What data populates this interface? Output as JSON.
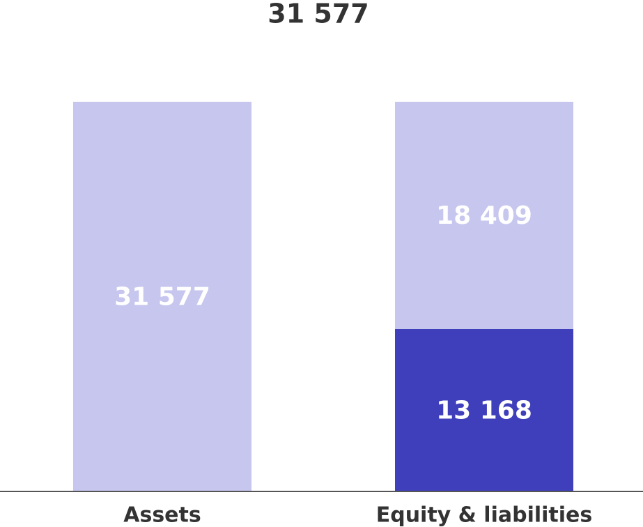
{
  "chart_data": {
    "type": "stacked_bar",
    "title": "31 577",
    "categories": [
      "Assets",
      "Equity & liabilities"
    ],
    "series": [
      {
        "color": "#3f3fbb",
        "values": [
          null,
          13168
        ],
        "value_labels": [
          null,
          "13 168"
        ]
      },
      {
        "color": "#c6c6ee",
        "values": [
          31577,
          18409
        ],
        "value_labels": [
          "31 577",
          "18 409"
        ]
      }
    ]
  }
}
